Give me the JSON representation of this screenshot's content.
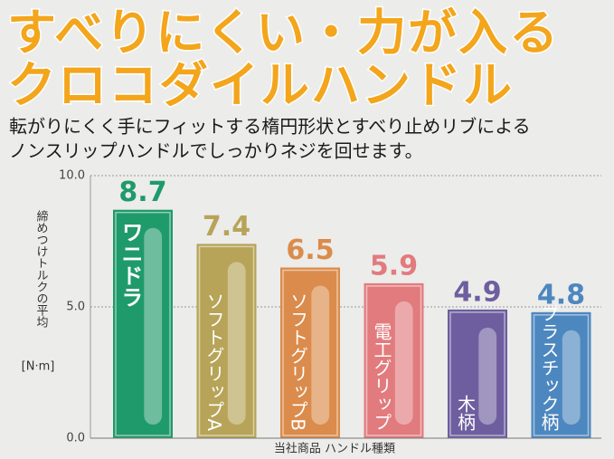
{
  "chart_data": {
    "type": "bar",
    "title": [
      "すべりにくい・力が入る",
      "クロコダイルハンドル"
    ],
    "subtitle": [
      "転がりにくく手にフィットする楕円形状とすべり止めリブによる",
      "ノンスリップハンドルでしっかりネジを回せます。"
    ],
    "y_label": "締めつけトルクの平均",
    "y_unit": "[N·m]",
    "x_label": "当社商品 ハンドル種類",
    "categories": [
      "ワニドラ",
      "ソフトグリップA",
      "ソフトグリップB",
      "電工グリップ",
      "木柄",
      "プラスチック柄"
    ],
    "values": [
      8.7,
      7.4,
      6.5,
      5.9,
      4.9,
      4.8
    ],
    "colors": [
      "#1f9a6b",
      "#b7a458",
      "#db8b4b",
      "#e27b7e",
      "#6e5e9f",
      "#4d87bf"
    ],
    "ylim": [
      0,
      10
    ],
    "yticks": [
      {
        "value": 0,
        "label": "0.0"
      },
      {
        "value": 5,
        "label": "5.0"
      },
      {
        "value": 10,
        "label": "10.0"
      }
    ],
    "grid": true
  }
}
